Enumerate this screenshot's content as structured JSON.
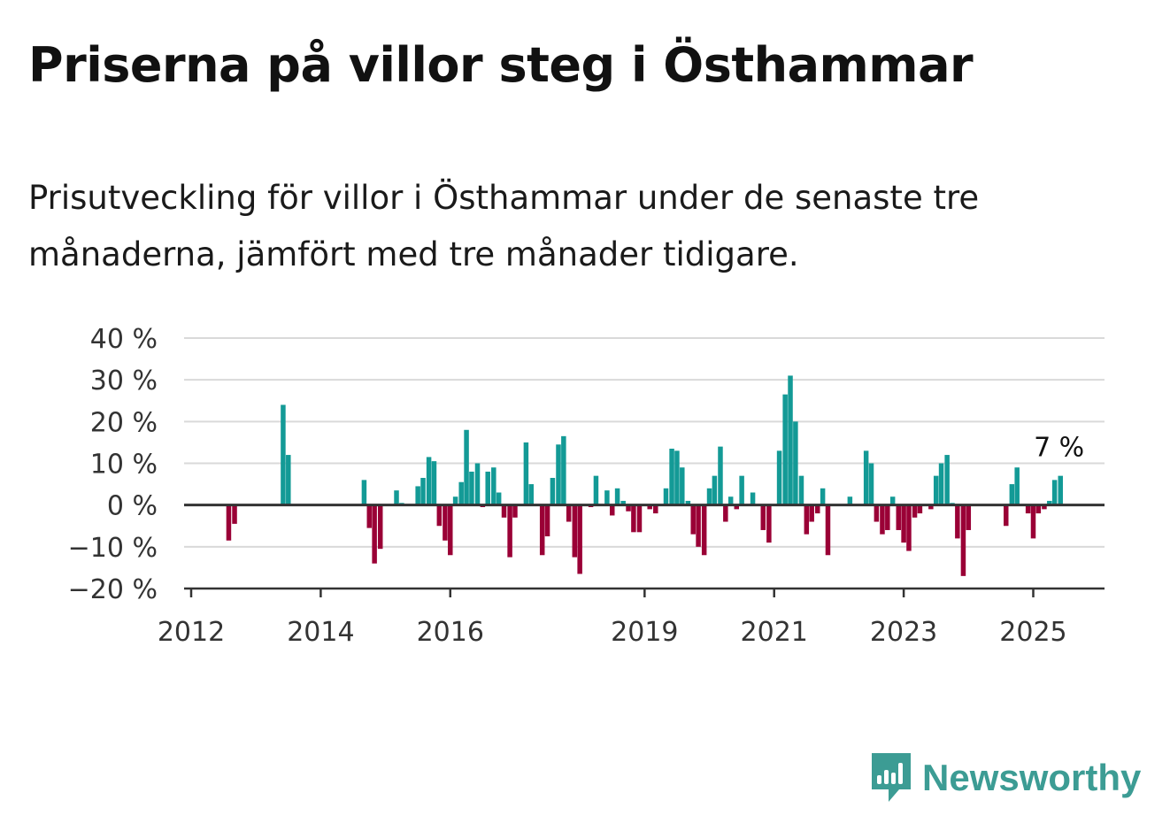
{
  "title": "Priserna på villor steg i Östhammar",
  "subtitle": "Prisutveckling för villor i Östhammar under de senaste tre månaderna, jämfört med tre månader tidigare.",
  "brand": {
    "name": "Newsworthy",
    "color": "#3c9c94"
  },
  "colors": {
    "positive": "#139a96",
    "negative": "#9a0036",
    "grid": "#d9d9d9",
    "axis": "#333333"
  },
  "chart_data": {
    "type": "bar",
    "title": "",
    "xlabel": "",
    "ylabel": "",
    "ylim": [
      -20,
      40
    ],
    "yticks": [
      -20,
      -10,
      0,
      10,
      20,
      30,
      40
    ],
    "ytick_labels": [
      "−20 %",
      "−10 %",
      "0 %",
      "10 %",
      "20 %",
      "30 %",
      "40 %"
    ],
    "xticks": [
      2012,
      2014,
      2016,
      2019,
      2021,
      2023,
      2025
    ],
    "xtick_labels": [
      "2012",
      "2014",
      "2016",
      "2019",
      "2021",
      "2023",
      "2025"
    ],
    "xlim": [
      2012,
      2026.1
    ],
    "grid": true,
    "annotation": {
      "text": "7 %",
      "x": 2025.33,
      "y": 7
    },
    "series": [
      {
        "values": [
          [
            2012.58,
            -8.5
          ],
          [
            2012.67,
            -4.5
          ],
          [
            2013.42,
            24
          ],
          [
            2013.5,
            12
          ],
          [
            2014.67,
            6
          ],
          [
            2014.75,
            -5.5
          ],
          [
            2014.83,
            -14
          ],
          [
            2014.92,
            -10.5
          ],
          [
            2015.17,
            3.5
          ],
          [
            2015.25,
            0.5
          ],
          [
            2015.5,
            4.5
          ],
          [
            2015.58,
            6.5
          ],
          [
            2015.67,
            11.5
          ],
          [
            2015.75,
            10.5
          ],
          [
            2015.83,
            -5
          ],
          [
            2015.92,
            -8.5
          ],
          [
            2016.0,
            -12
          ],
          [
            2016.08,
            2
          ],
          [
            2016.17,
            5.5
          ],
          [
            2016.25,
            18
          ],
          [
            2016.33,
            8
          ],
          [
            2016.42,
            10
          ],
          [
            2016.5,
            -0.5
          ],
          [
            2016.58,
            8
          ],
          [
            2016.67,
            9
          ],
          [
            2016.75,
            3
          ],
          [
            2016.83,
            -3
          ],
          [
            2016.92,
            -12.5
          ],
          [
            2017.0,
            -3
          ],
          [
            2017.17,
            15
          ],
          [
            2017.25,
            5
          ],
          [
            2017.42,
            -12
          ],
          [
            2017.5,
            -7.5
          ],
          [
            2017.58,
            6.5
          ],
          [
            2017.67,
            14.5
          ],
          [
            2017.75,
            16.5
          ],
          [
            2017.83,
            -4
          ],
          [
            2017.92,
            -12.5
          ],
          [
            2018.0,
            -16.5
          ],
          [
            2018.17,
            -0.5
          ],
          [
            2018.25,
            7
          ],
          [
            2018.42,
            3.5
          ],
          [
            2018.5,
            -2.5
          ],
          [
            2018.58,
            4
          ],
          [
            2018.67,
            1
          ],
          [
            2018.75,
            -1.5
          ],
          [
            2018.83,
            -6.5
          ],
          [
            2018.92,
            -6.5
          ],
          [
            2019.08,
            -1
          ],
          [
            2019.17,
            -2
          ],
          [
            2019.33,
            4
          ],
          [
            2019.42,
            13.5
          ],
          [
            2019.5,
            13
          ],
          [
            2019.58,
            9
          ],
          [
            2019.67,
            1
          ],
          [
            2019.75,
            -7
          ],
          [
            2019.83,
            -10
          ],
          [
            2019.92,
            -12
          ],
          [
            2020.0,
            4
          ],
          [
            2020.08,
            7
          ],
          [
            2020.17,
            14
          ],
          [
            2020.25,
            -4
          ],
          [
            2020.33,
            2
          ],
          [
            2020.42,
            -1
          ],
          [
            2020.5,
            7
          ],
          [
            2020.67,
            3
          ],
          [
            2020.83,
            -6
          ],
          [
            2020.92,
            -9
          ],
          [
            2021.08,
            13
          ],
          [
            2021.17,
            26.5
          ],
          [
            2021.25,
            31
          ],
          [
            2021.33,
            20
          ],
          [
            2021.42,
            7
          ],
          [
            2021.5,
            -7
          ],
          [
            2021.58,
            -4
          ],
          [
            2021.67,
            -2
          ],
          [
            2021.75,
            4
          ],
          [
            2021.83,
            -12
          ],
          [
            2022.17,
            2
          ],
          [
            2022.42,
            13
          ],
          [
            2022.5,
            10
          ],
          [
            2022.58,
            -4
          ],
          [
            2022.67,
            -7
          ],
          [
            2022.75,
            -6
          ],
          [
            2022.83,
            2
          ],
          [
            2022.92,
            -6
          ],
          [
            2023.0,
            -9
          ],
          [
            2023.08,
            -11
          ],
          [
            2023.17,
            -3
          ],
          [
            2023.25,
            -2
          ],
          [
            2023.42,
            -1
          ],
          [
            2023.5,
            7
          ],
          [
            2023.58,
            10
          ],
          [
            2023.67,
            12
          ],
          [
            2023.75,
            0.5
          ],
          [
            2023.83,
            -8
          ],
          [
            2023.92,
            -17
          ],
          [
            2024.0,
            -6
          ],
          [
            2024.58,
            -5
          ],
          [
            2024.67,
            5
          ],
          [
            2024.75,
            9
          ],
          [
            2024.92,
            -2
          ],
          [
            2025.0,
            -8
          ],
          [
            2025.08,
            -2
          ],
          [
            2025.17,
            -1
          ],
          [
            2025.25,
            1
          ],
          [
            2025.33,
            6
          ],
          [
            2025.42,
            7
          ]
        ]
      }
    ]
  }
}
